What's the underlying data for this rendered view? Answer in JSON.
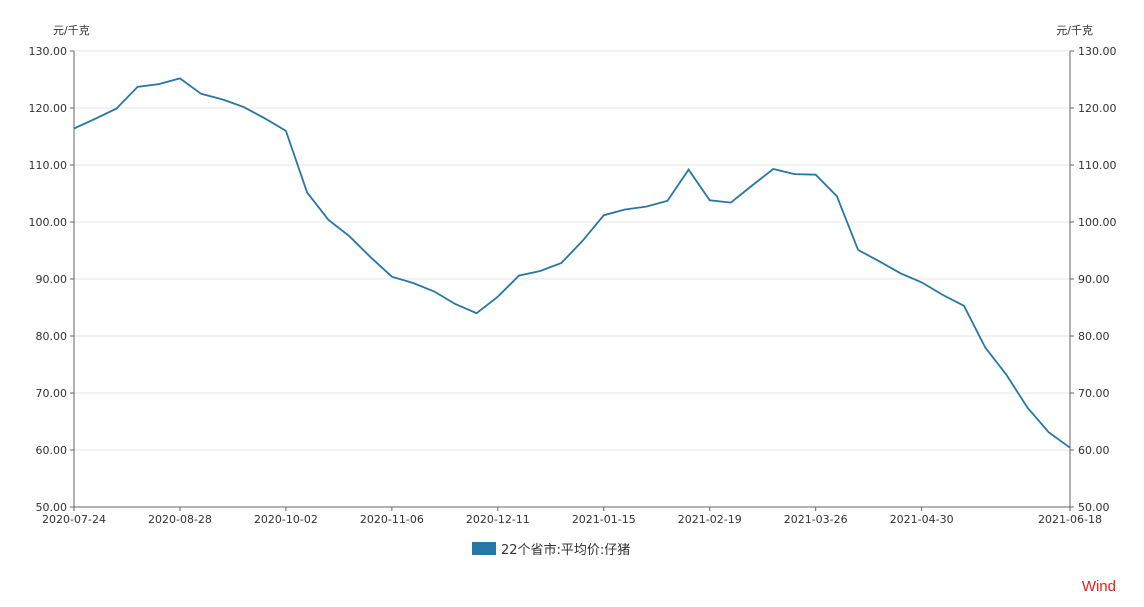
{
  "chart_data": {
    "type": "line",
    "unit_left": "元/千克",
    "unit_right": "元/千克",
    "ylim": [
      50,
      130
    ],
    "y_ticks": [
      "50.00",
      "60.00",
      "70.00",
      "80.00",
      "90.00",
      "100.00",
      "110.00",
      "120.00",
      "130.00"
    ],
    "x_ticks": [
      "2020-07-24",
      "2020-08-28",
      "2020-10-02",
      "2020-11-06",
      "2020-12-11",
      "2021-01-15",
      "2021-02-19",
      "2021-03-26",
      "2021-04-30",
      "2021-06-18"
    ],
    "x": [
      "2020-07-24",
      "2020-07-31",
      "2020-08-07",
      "2020-08-14",
      "2020-08-21",
      "2020-08-28",
      "2020-09-04",
      "2020-09-11",
      "2020-09-18",
      "2020-09-25",
      "2020-10-02",
      "2020-10-09",
      "2020-10-16",
      "2020-10-23",
      "2020-10-30",
      "2020-11-06",
      "2020-11-13",
      "2020-11-20",
      "2020-11-27",
      "2020-12-04",
      "2020-12-11",
      "2020-12-18",
      "2020-12-25",
      "2021-01-01",
      "2021-01-08",
      "2021-01-15",
      "2021-01-22",
      "2021-01-29",
      "2021-02-05",
      "2021-02-12",
      "2021-02-19",
      "2021-02-26",
      "2021-03-05",
      "2021-03-12",
      "2021-03-19",
      "2021-03-26",
      "2021-04-02",
      "2021-04-09",
      "2021-04-16",
      "2021-04-23",
      "2021-04-30",
      "2021-05-07",
      "2021-05-14",
      "2021-05-21",
      "2021-05-28",
      "2021-06-04",
      "2021-06-11",
      "2021-06-18"
    ],
    "series": [
      {
        "name": "22个省市:平均价:仔猪",
        "color": "#2777a6",
        "values": [
          116.4,
          118.1,
          119.9,
          123.7,
          124.2,
          125.2,
          122.5,
          121.5,
          120.2,
          118.2,
          116.0,
          105.2,
          100.4,
          97.5,
          93.8,
          90.4,
          89.3,
          87.8,
          85.6,
          84.0,
          86.9,
          90.6,
          91.4,
          92.8,
          96.7,
          101.2,
          102.2,
          102.7,
          103.7,
          109.2,
          103.8,
          103.4,
          106.4,
          109.3,
          108.4,
          108.3,
          104.5,
          95.1,
          93.1,
          91.0,
          89.4,
          87.2,
          85.3,
          78.0,
          73.2,
          67.4,
          63.1,
          60.4
        ]
      }
    ],
    "grid": true,
    "legend_position": "bottom-center"
  },
  "watermark": {
    "text": "Wind",
    "color": "#e02020"
  }
}
